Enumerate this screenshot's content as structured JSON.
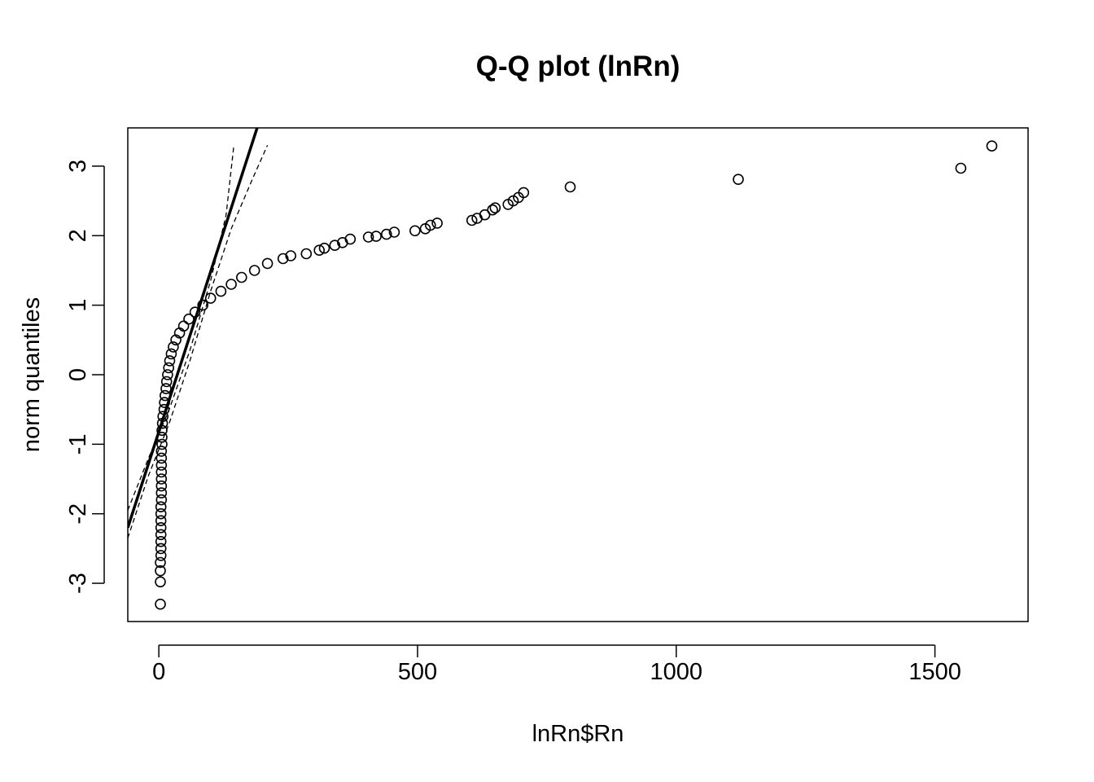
{
  "chart_data": {
    "type": "scatter",
    "title": "Q-Q plot (lnRn)",
    "xlabel": "lnRn$Rn",
    "ylabel": "norm quantiles",
    "xlim": [
      -60,
      1680
    ],
    "ylim": [
      -3.55,
      3.55
    ],
    "x_ticks": [
      0,
      500,
      1000,
      1500
    ],
    "x_tick_labels": [
      "0",
      "500",
      "1000",
      "1500"
    ],
    "y_ticks": [
      -3,
      -2,
      -1,
      0,
      1,
      2,
      3
    ],
    "y_tick_labels": [
      "-3",
      "-2",
      "-1",
      "0",
      "1",
      "2",
      "3"
    ],
    "grid": false,
    "legend": "none",
    "reference_line": {
      "points": [
        [
          -60,
          -2.2
        ],
        [
          190,
          3.55
        ]
      ]
    },
    "confidence_band_upper": [
      [
        -60,
        -1.95
      ],
      [
        -20,
        -1.2
      ],
      [
        20,
        -0.5
      ],
      [
        60,
        0.35
      ],
      [
        100,
        1.35
      ],
      [
        130,
        2.3
      ],
      [
        145,
        3.3
      ]
    ],
    "confidence_band_lower": [
      [
        -60,
        -2.35
      ],
      [
        -20,
        -1.45
      ],
      [
        20,
        -0.7
      ],
      [
        60,
        0.2
      ],
      [
        100,
        1.2
      ],
      [
        140,
        2.1
      ],
      [
        180,
        2.8
      ],
      [
        210,
        3.3
      ]
    ],
    "points": [
      [
        3,
        -3.3
      ],
      [
        3,
        -2.98
      ],
      [
        3,
        -2.82
      ],
      [
        3,
        -2.7
      ],
      [
        4,
        -2.6
      ],
      [
        4,
        -2.5
      ],
      [
        4,
        -2.4
      ],
      [
        4,
        -2.3
      ],
      [
        4,
        -2.2
      ],
      [
        4,
        -2.1
      ],
      [
        4,
        -2.0
      ],
      [
        4,
        -1.9
      ],
      [
        5,
        -1.8
      ],
      [
        5,
        -1.7
      ],
      [
        5,
        -1.6
      ],
      [
        5,
        -1.5
      ],
      [
        5,
        -1.4
      ],
      [
        5,
        -1.3
      ],
      [
        5,
        -1.2
      ],
      [
        5,
        -1.1
      ],
      [
        6,
        -1.0
      ],
      [
        6,
        -0.9
      ],
      [
        6,
        -0.8
      ],
      [
        7,
        -0.7
      ],
      [
        8,
        -0.6
      ],
      [
        10,
        -0.5
      ],
      [
        11,
        -0.4
      ],
      [
        12,
        -0.3
      ],
      [
        14,
        -0.2
      ],
      [
        15,
        -0.1
      ],
      [
        17,
        0.0
      ],
      [
        19,
        0.1
      ],
      [
        21,
        0.2
      ],
      [
        24,
        0.3
      ],
      [
        28,
        0.4
      ],
      [
        33,
        0.5
      ],
      [
        40,
        0.6
      ],
      [
        48,
        0.7
      ],
      [
        58,
        0.8
      ],
      [
        70,
        0.9
      ],
      [
        85,
        1.0
      ],
      [
        100,
        1.1
      ],
      [
        120,
        1.2
      ],
      [
        140,
        1.3
      ],
      [
        160,
        1.4
      ],
      [
        185,
        1.5
      ],
      [
        210,
        1.6
      ],
      [
        240,
        1.67
      ],
      [
        255,
        1.71
      ],
      [
        285,
        1.74
      ],
      [
        310,
        1.79
      ],
      [
        320,
        1.82
      ],
      [
        340,
        1.86
      ],
      [
        355,
        1.9
      ],
      [
        370,
        1.95
      ],
      [
        405,
        1.98
      ],
      [
        420,
        1.99
      ],
      [
        440,
        2.02
      ],
      [
        455,
        2.05
      ],
      [
        495,
        2.07
      ],
      [
        515,
        2.1
      ],
      [
        525,
        2.15
      ],
      [
        538,
        2.18
      ],
      [
        605,
        2.22
      ],
      [
        615,
        2.25
      ],
      [
        630,
        2.3
      ],
      [
        645,
        2.37
      ],
      [
        650,
        2.4
      ],
      [
        675,
        2.45
      ],
      [
        685,
        2.5
      ],
      [
        695,
        2.55
      ],
      [
        705,
        2.62
      ],
      [
        795,
        2.7
      ],
      [
        1120,
        2.81
      ],
      [
        1550,
        2.97
      ],
      [
        1610,
        3.29
      ]
    ]
  }
}
